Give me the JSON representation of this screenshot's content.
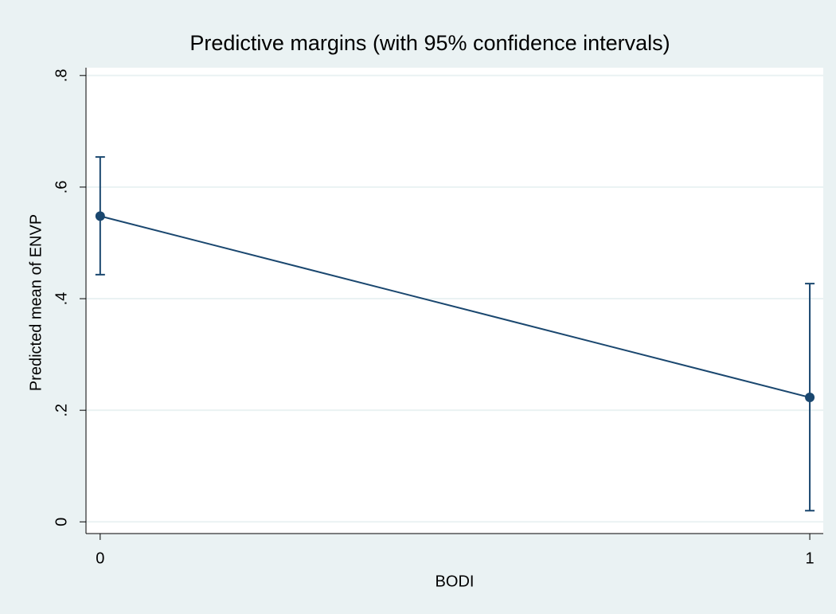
{
  "chart_data": {
    "type": "line",
    "title": "Predictive margins (with 95% confidence intervals)",
    "x_label": "BODI",
    "y_label": "Predicted mean of ENVP",
    "x": [
      0,
      1
    ],
    "values": [
      0.548,
      0.223
    ],
    "ci_lower": [
      0.443,
      0.02
    ],
    "ci_upper": [
      0.654,
      0.427
    ],
    "color": "#1a476f",
    "title_color": "#1a476f",
    "xlim": [
      -0.02,
      1.019
    ],
    "xticks": [
      0,
      1
    ],
    "ylim": [
      -0.021,
      0.814
    ],
    "yticks": [
      0,
      {
        "value": 0.2,
        "label": ".2"
      },
      {
        "value": 0.4,
        "label": ".4"
      },
      {
        "value": 0.6,
        "label": ".6"
      },
      {
        "value": 0.8,
        "label": ".8"
      }
    ],
    "grid": true
  }
}
